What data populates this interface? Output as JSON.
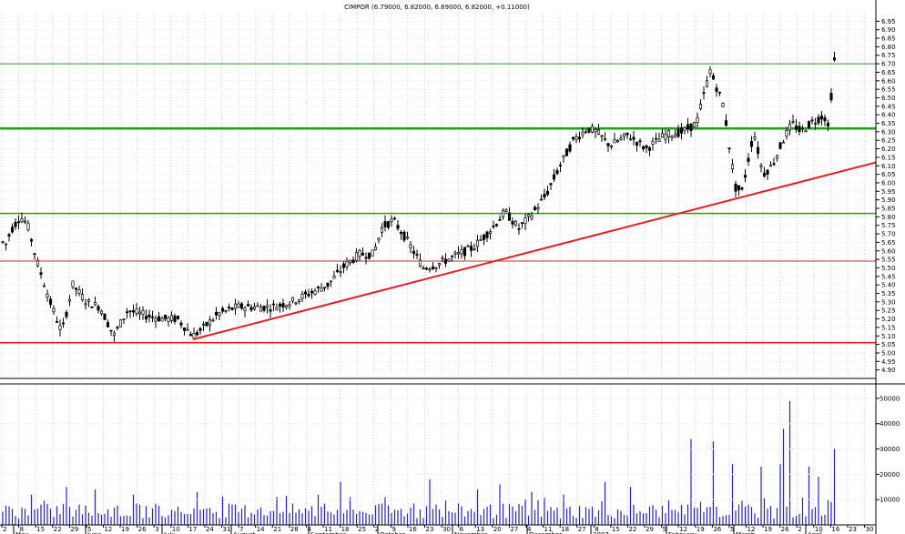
{
  "chart_data": {
    "type": "candlestick",
    "title": "CIMPOR (6.79000, 6.82000, 6.69000, 6.82000, +0.11000)",
    "price_axis": {
      "ylim": [
        4.85,
        7.0
      ],
      "ticks": [
        "6.95",
        "6.90",
        "6.85",
        "6.80",
        "6.75",
        "6.70",
        "6.65",
        "6.60",
        "6.55",
        "6.50",
        "6.45",
        "6.40",
        "6.35",
        "6.30",
        "6.25",
        "6.20",
        "6.15",
        "6.10",
        "6.05",
        "6.00",
        "5.95",
        "5.90",
        "5.85",
        "5.80",
        "5.75",
        "5.70",
        "5.65",
        "5.60",
        "5.55",
        "5.50",
        "5.45",
        "5.40",
        "5.35",
        "5.30",
        "5.25",
        "5.20",
        "5.15",
        "5.10",
        "5.05",
        "5.00",
        "4.95",
        "4.90"
      ]
    },
    "volume_axis": {
      "ylim": [
        0,
        55000
      ],
      "ticks": [
        "50000",
        "40000",
        "30000",
        "20000",
        "10000"
      ]
    },
    "x_day_labels": [
      "2",
      "8",
      "15",
      "22",
      "29",
      "5",
      "12",
      "19",
      "26",
      "3",
      "10",
      "17",
      "24",
      "31",
      "7",
      "14",
      "21",
      "28",
      "4",
      "11",
      "18",
      "25",
      "2",
      "9",
      "16",
      "23",
      "30",
      "6",
      "13",
      "20",
      "27",
      "4",
      "11",
      "18",
      "27",
      "8",
      "15",
      "22",
      "29",
      "5",
      "12",
      "19",
      "26",
      "5",
      "12",
      "19",
      "26",
      "2",
      "10",
      "16",
      "23",
      "30"
    ],
    "x_month_labels": [
      "May",
      "June",
      "July",
      "August",
      "September",
      "October",
      "November",
      "December",
      "2007",
      "February",
      "March",
      "April"
    ],
    "horizontal_lines": [
      {
        "price": 6.7,
        "color": "#22a022",
        "weight": "thin"
      },
      {
        "price": 6.32,
        "color": "#22a022",
        "weight": "thick"
      },
      {
        "price": 5.82,
        "color": "#22a022",
        "weight": "medium"
      },
      {
        "price": 5.54,
        "color": "#e02020",
        "weight": "thin"
      },
      {
        "price": 5.06,
        "color": "#e02020",
        "weight": "medium"
      }
    ],
    "trendline": {
      "from": {
        "month": "July",
        "day": 12,
        "price": 5.08
      },
      "to": {
        "month": "April",
        "day": 30,
        "price": 6.12
      },
      "color": "#e02020"
    },
    "price_anchors": [
      [
        0,
        5.7
      ],
      [
        5,
        5.62
      ],
      [
        12,
        5.72
      ],
      [
        22,
        5.8
      ],
      [
        30,
        5.76
      ],
      [
        40,
        5.55
      ],
      [
        55,
        5.3
      ],
      [
        68,
        5.12
      ],
      [
        80,
        5.4
      ],
      [
        95,
        5.3
      ],
      [
        110,
        5.27
      ],
      [
        125,
        5.1
      ],
      [
        140,
        5.25
      ],
      [
        160,
        5.22
      ],
      [
        180,
        5.2
      ],
      [
        195,
        5.2
      ],
      [
        212,
        5.1
      ],
      [
        222,
        5.14
      ],
      [
        240,
        5.23
      ],
      [
        260,
        5.27
      ],
      [
        280,
        5.27
      ],
      [
        300,
        5.27
      ],
      [
        320,
        5.3
      ],
      [
        340,
        5.35
      ],
      [
        360,
        5.4
      ],
      [
        380,
        5.52
      ],
      [
        395,
        5.58
      ],
      [
        410,
        5.58
      ],
      [
        420,
        5.74
      ],
      [
        432,
        5.78
      ],
      [
        445,
        5.68
      ],
      [
        465,
        5.5
      ],
      [
        480,
        5.52
      ],
      [
        500,
        5.57
      ],
      [
        520,
        5.62
      ],
      [
        540,
        5.73
      ],
      [
        555,
        5.83
      ],
      [
        570,
        5.73
      ],
      [
        585,
        5.82
      ],
      [
        600,
        5.93
      ],
      [
        615,
        6.1
      ],
      [
        630,
        6.25
      ],
      [
        645,
        6.32
      ],
      [
        655,
        6.3
      ],
      [
        670,
        6.22
      ],
      [
        690,
        6.28
      ],
      [
        710,
        6.2
      ],
      [
        730,
        6.28
      ],
      [
        750,
        6.3
      ],
      [
        765,
        6.35
      ],
      [
        780,
        6.66
      ],
      [
        795,
        6.45
      ],
      [
        800,
        6.25
      ],
      [
        808,
        5.97
      ],
      [
        815,
        5.95
      ],
      [
        828,
        6.3
      ],
      [
        838,
        6.05
      ],
      [
        848,
        6.1
      ],
      [
        860,
        6.25
      ],
      [
        870,
        6.35
      ],
      [
        880,
        6.3
      ],
      [
        890,
        6.35
      ],
      [
        900,
        6.38
      ],
      [
        905,
        6.4
      ],
      [
        910,
        6.32
      ],
      [
        915,
        6.64
      ],
      [
        918,
        6.8
      ]
    ],
    "volume_spikes": [
      [
        30,
        12000
      ],
      [
        70,
        15000
      ],
      [
        100,
        14000
      ],
      [
        145,
        12000
      ],
      [
        215,
        13000
      ],
      [
        300,
        11000
      ],
      [
        345,
        12000
      ],
      [
        372,
        17000
      ],
      [
        420,
        11000
      ],
      [
        468,
        18000
      ],
      [
        520,
        14000
      ],
      [
        545,
        16000
      ],
      [
        580,
        13000
      ],
      [
        615,
        12000
      ],
      [
        660,
        17000
      ],
      [
        690,
        15000
      ],
      [
        756,
        34000
      ],
      [
        780,
        33000
      ],
      [
        800,
        24000
      ],
      [
        834,
        23000
      ],
      [
        855,
        24000
      ],
      [
        858,
        38000
      ],
      [
        866,
        49000
      ],
      [
        884,
        23000
      ],
      [
        897,
        19000
      ],
      [
        912,
        30000
      ],
      [
        916,
        26000
      ]
    ]
  }
}
